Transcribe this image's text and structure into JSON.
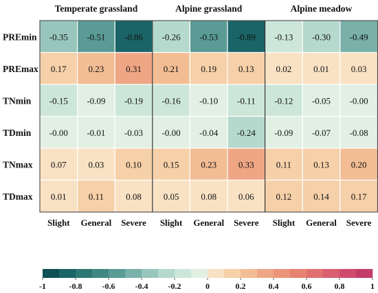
{
  "chart_data": {
    "type": "heatmap",
    "groups": [
      "Temperate grassland",
      "Alpine grassland",
      "Alpine meadow"
    ],
    "subcategories": [
      "Slight",
      "General",
      "Severe"
    ],
    "rows": [
      "PREmin",
      "PREmax",
      "TNmin",
      "TDmin",
      "TNmax",
      "TDmax"
    ],
    "values": [
      [
        -0.35,
        -0.51,
        -0.86,
        -0.26,
        -0.53,
        -0.89,
        -0.13,
        -0.3,
        -0.49
      ],
      [
        0.17,
        0.23,
        0.31,
        0.21,
        0.19,
        0.13,
        0.02,
        0.01,
        0.03
      ],
      [
        -0.15,
        -0.09,
        -0.19,
        -0.16,
        -0.1,
        -0.11,
        -0.12,
        -0.05,
        -0.0
      ],
      [
        -0.0,
        -0.01,
        -0.03,
        -0.0,
        -0.04,
        -0.24,
        -0.09,
        -0.07,
        -0.08
      ],
      [
        0.07,
        0.03,
        0.1,
        0.15,
        0.23,
        0.33,
        0.11,
        0.13,
        0.2
      ],
      [
        0.01,
        0.11,
        0.08,
        0.05,
        0.08,
        0.06,
        0.12,
        0.14,
        0.17
      ]
    ],
    "value_labels": [
      [
        "-0.35",
        "-0.51",
        "-0.86",
        "-0.26",
        "-0.53",
        "-0.89",
        "-0.13",
        "-0.30",
        "-0.49"
      ],
      [
        "0.17",
        "0.23",
        "0.31",
        "0.21",
        "0.19",
        "0.13",
        "0.02",
        "0.01",
        "0.03"
      ],
      [
        "-0.15",
        "-0.09",
        "-0.19",
        "-0.16",
        "-0.10",
        "-0.11",
        "-0.12",
        "-0.05",
        "-0.00"
      ],
      [
        "-0.00",
        "-0.01",
        "-0.03",
        "-0.00",
        "-0.04",
        "-0.24",
        "-0.09",
        "-0.07",
        "-0.08"
      ],
      [
        "0.07",
        "0.03",
        "0.10",
        "0.15",
        "0.23",
        "0.33",
        "0.11",
        "0.13",
        "0.20"
      ],
      [
        "0.01",
        "0.11",
        "0.08",
        "0.05",
        "0.08",
        "0.06",
        "0.12",
        "0.14",
        "0.17"
      ]
    ],
    "colorbar": {
      "range": [
        -1,
        1
      ],
      "ticks": [
        -1,
        -0.8,
        -0.6,
        -0.4,
        -0.2,
        0,
        0.2,
        0.4,
        0.6,
        0.8,
        1
      ],
      "tick_labels": [
        "-1",
        "-0.8",
        "-0.6",
        "-0.4",
        "-0.2",
        "0",
        "0.2",
        "0.4",
        "0.6",
        "0.8",
        "1"
      ],
      "bin_edges": [
        -1,
        -0.9,
        -0.8,
        -0.7,
        -0.6,
        -0.5,
        -0.4,
        -0.3,
        -0.2,
        -0.1,
        0,
        0.1,
        0.2,
        0.3,
        0.4,
        0.5,
        0.6,
        0.7,
        0.8,
        0.9,
        1
      ],
      "bin_colors": [
        "#0d4f55",
        "#1a6467",
        "#2c7674",
        "#3f8782",
        "#5a9b95",
        "#79b0a9",
        "#98c6bc",
        "#b5d9cd",
        "#cde6da",
        "#e2f0e4",
        "#f9e2c4",
        "#f6d0a8",
        "#f2bd94",
        "#eea685",
        "#eb9479",
        "#e68372",
        "#e07070",
        "#d95e70",
        "#cf4c6e",
        "#c23d68"
      ]
    }
  }
}
